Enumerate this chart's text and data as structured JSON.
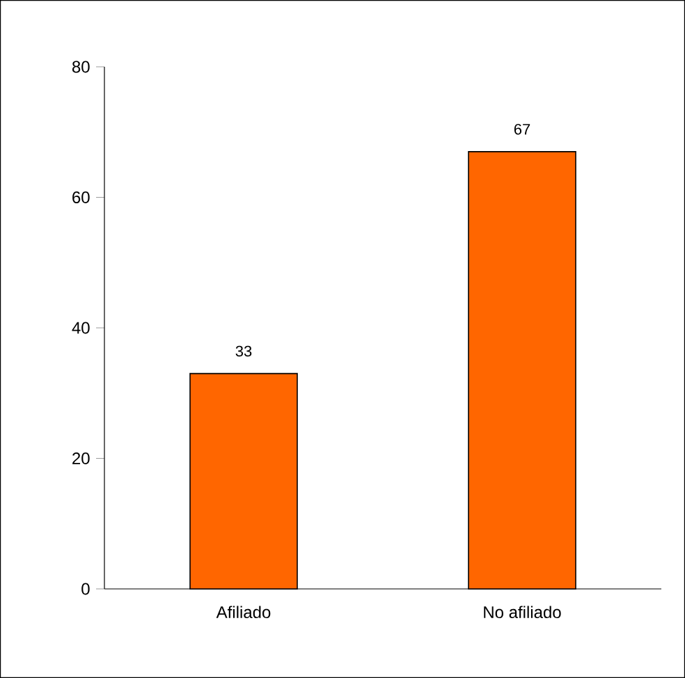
{
  "chart_data": {
    "type": "bar",
    "categories": [
      "Afiliado",
      "No afiliado"
    ],
    "values": [
      33,
      67
    ],
    "color": "#ff6600",
    "ylim": [
      0,
      80
    ],
    "yticks": [
      0,
      20,
      40,
      60,
      80
    ],
    "data_labels": true
  }
}
